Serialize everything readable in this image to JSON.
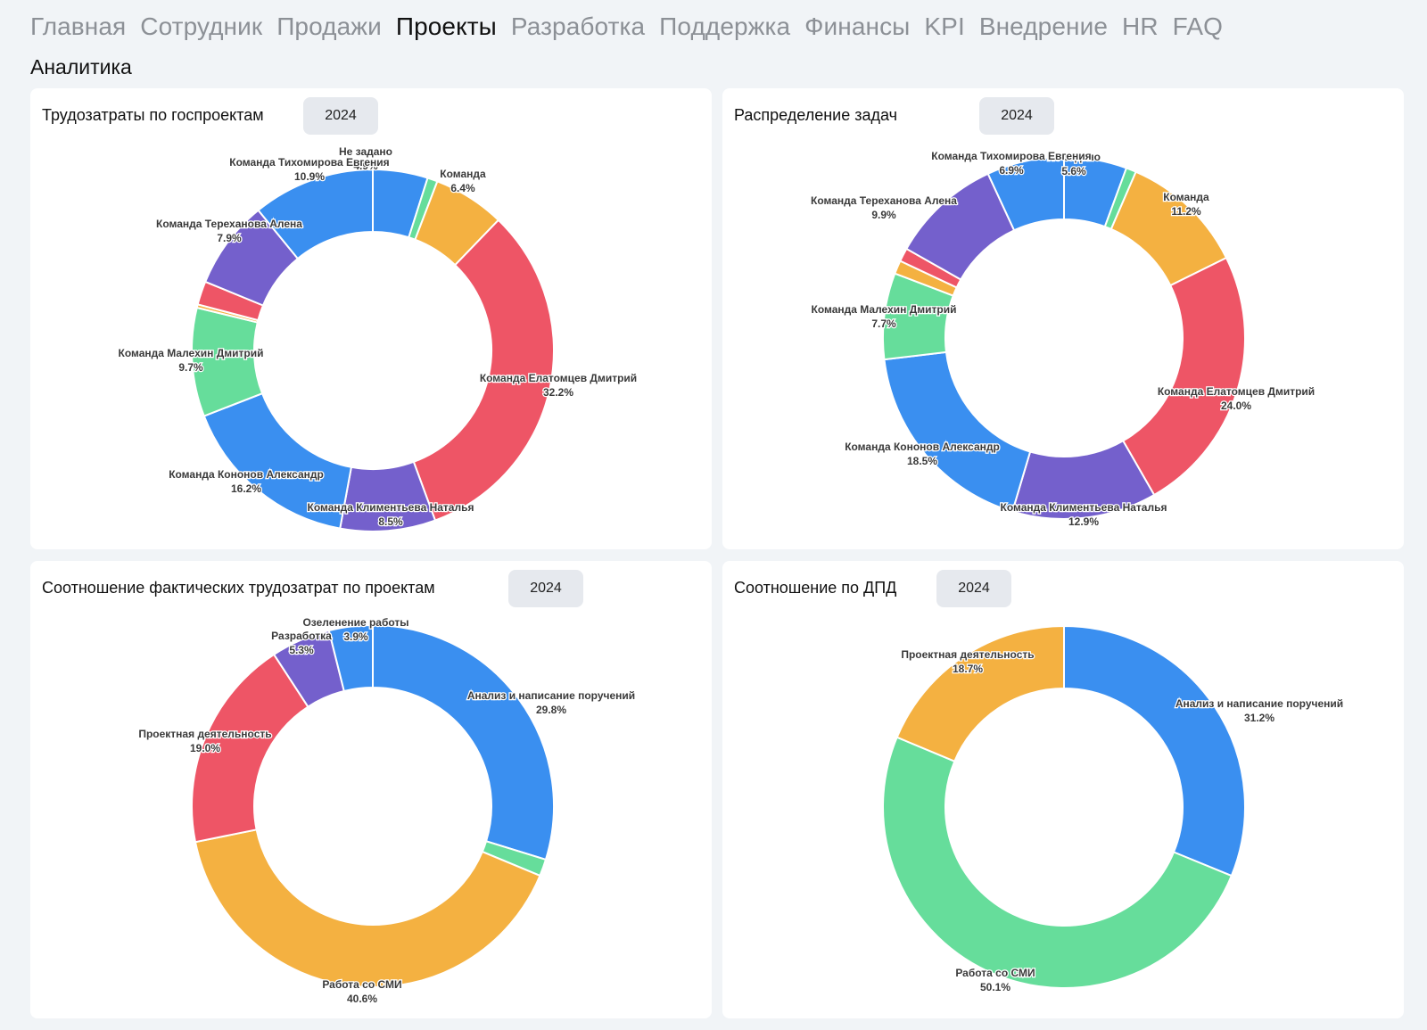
{
  "nav": {
    "items": [
      "Главная",
      "Сотрудник",
      "Продажи",
      "Проекты",
      "Разработка",
      "Поддержка",
      "Финансы",
      "KPI",
      "Внедрение",
      "HR",
      "FAQ"
    ],
    "active_index": 3
  },
  "section_title": "Аналитика",
  "colors": {
    "blue": "#3a8ff0",
    "green": "#66dd9b",
    "orange": "#f4b141",
    "red": "#ee5566",
    "purple": "#7460cc"
  },
  "cards": [
    {
      "title": "Трудозатраты по госпроектам",
      "year": "2024",
      "chart_data": {
        "type": "pie",
        "donut": true,
        "segments": [
          {
            "label": "Не задано",
            "pct": "4.9%",
            "value": 4.9,
            "color": "#3a8ff0"
          },
          {
            "label": "",
            "pct": "",
            "value": 0.9,
            "color": "#66dd9b"
          },
          {
            "label": "Команда",
            "pct": "6.4%",
            "value": 6.4,
            "color": "#f4b141"
          },
          {
            "label": "Команда Елатомцев Дмитрий",
            "pct": "32.2%",
            "value": 32.2,
            "color": "#ee5566"
          },
          {
            "label": "Команда Климентьева Наталья",
            "pct": "8.5%",
            "value": 8.5,
            "color": "#7460cc"
          },
          {
            "label": "Команда Кононов Александр",
            "pct": "16.2%",
            "value": 16.2,
            "color": "#3a8ff0"
          },
          {
            "label": "Команда Малехин Дмитрий",
            "pct": "9.7%",
            "value": 9.7,
            "color": "#66dd9b"
          },
          {
            "label": "",
            "pct": "",
            "value": 0.3,
            "color": "#f4b141"
          },
          {
            "label": "",
            "pct": "",
            "value": 2.1,
            "color": "#ee5566"
          },
          {
            "label": "Команда Тереханова Алена",
            "pct": "7.9%",
            "value": 7.9,
            "color": "#7460cc"
          },
          {
            "label": "Команда Тихомирова Евгения",
            "pct": "10.9%",
            "value": 10.9,
            "color": "#3a8ff0"
          }
        ]
      }
    },
    {
      "title": "Распределение задач",
      "year": "2024",
      "chart_data": {
        "type": "pie",
        "donut": true,
        "segments": [
          {
            "label": "Не задано",
            "pct": "5.6%",
            "value": 5.6,
            "color": "#3a8ff0"
          },
          {
            "label": "",
            "pct": "",
            "value": 0.9,
            "color": "#66dd9b"
          },
          {
            "label": "Команда",
            "pct": "11.2%",
            "value": 11.2,
            "color": "#f4b141"
          },
          {
            "label": "Команда Елатомцев Дмитрий",
            "pct": "24.0%",
            "value": 24.0,
            "color": "#ee5566"
          },
          {
            "label": "Команда Климентьева Наталья",
            "pct": "12.9%",
            "value": 12.9,
            "color": "#7460cc"
          },
          {
            "label": "Команда Кононов Александр",
            "pct": "18.5%",
            "value": 18.5,
            "color": "#3a8ff0"
          },
          {
            "label": "Команда Малехин Дмитрий",
            "pct": "7.7%",
            "value": 7.7,
            "color": "#66dd9b"
          },
          {
            "label": "",
            "pct": "",
            "value": 1.2,
            "color": "#f4b141"
          },
          {
            "label": "",
            "pct": "",
            "value": 1.2,
            "color": "#ee5566"
          },
          {
            "label": "Команда Тереханова Алена",
            "pct": "9.9%",
            "value": 9.9,
            "color": "#7460cc"
          },
          {
            "label": "Команда Тихомирова Евгения",
            "pct": "6.9%",
            "value": 6.9,
            "color": "#3a8ff0"
          }
        ]
      }
    },
    {
      "title": "Соотношение фактических трудозатрат по проектам",
      "year": "2024",
      "chart_data": {
        "type": "pie",
        "donut": true,
        "segments": [
          {
            "label": "Анализ и написание поручений",
            "pct": "29.8%",
            "value": 29.8,
            "color": "#3a8ff0"
          },
          {
            "label": "",
            "pct": "",
            "value": 1.5,
            "color": "#66dd9b"
          },
          {
            "label": "Работа со СМИ",
            "pct": "40.6%",
            "value": 40.6,
            "color": "#f4b141"
          },
          {
            "label": "Проектная деятельность",
            "pct": "19.0%",
            "value": 19.0,
            "color": "#ee5566"
          },
          {
            "label": "Разработка",
            "pct": "5.3%",
            "value": 5.3,
            "color": "#7460cc"
          },
          {
            "label": "Озеленение работы",
            "pct": "3.9%",
            "value": 3.9,
            "color": "#3a8ff0"
          }
        ]
      }
    },
    {
      "title": "Соотношение по ДПД",
      "year": "2024",
      "chart_data": {
        "type": "pie",
        "donut": true,
        "segments": [
          {
            "label": "Анализ и написание поручений",
            "pct": "31.2%",
            "value": 31.2,
            "color": "#3a8ff0"
          },
          {
            "label": "Работа со СМИ",
            "pct": "50.1%",
            "value": 50.1,
            "color": "#66dd9b"
          },
          {
            "label": "Проектная деятельность",
            "pct": "18.7%",
            "value": 18.7,
            "color": "#f4b141"
          }
        ]
      }
    }
  ]
}
